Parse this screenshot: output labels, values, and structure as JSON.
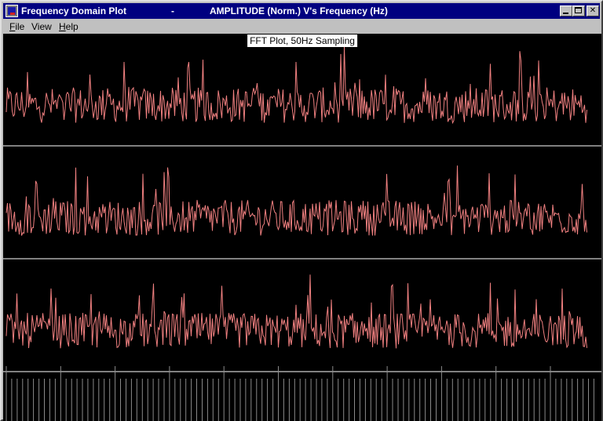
{
  "window": {
    "app_title": "Frequency Domain Plot",
    "separator": "-",
    "document_title": "AMPLITUDE (Norm.) V's Frequency (Hz)",
    "buttons": {
      "minimize": "",
      "maximize": "",
      "close": "✕"
    }
  },
  "menu": {
    "file": {
      "accel": "F",
      "rest": "ile"
    },
    "view": {
      "accel": "",
      "rest": "View"
    },
    "help": {
      "accel": "H",
      "rest": "elp"
    }
  },
  "plot": {
    "title": "FFT Plot, 50Hz Sampling",
    "trace_color": "#f08080",
    "axis_color": "#ffffff",
    "background": "#000000"
  }
}
